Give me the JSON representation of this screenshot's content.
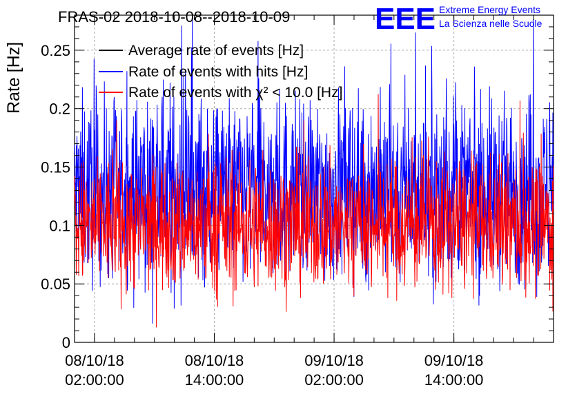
{
  "chart_data": {
    "type": "line",
    "title": "FRAS-02 2018-10-08--2018-10-09",
    "ylabel": "Rate [Hz]",
    "xlabel": "",
    "ylim": [
      0,
      0.28
    ],
    "xlim": [
      "2018-10-08 00:00:00",
      "2018-10-09 23:59:00"
    ],
    "y_ticks": [
      "0",
      "0.05",
      "0.1",
      "0.15",
      "0.2",
      "0.25"
    ],
    "x_ticks": [
      {
        "date": "08/10/18",
        "time": "02:00:00"
      },
      {
        "date": "08/10/18",
        "time": "14:00:00"
      },
      {
        "date": "09/10/18",
        "time": "02:00:00"
      },
      {
        "date": "09/10/18",
        "time": "14:00:00"
      }
    ],
    "grid": true,
    "legend_position": "top-left",
    "series": [
      {
        "name": "Average rate of events [Hz]",
        "color": "#000000",
        "mean": 0.12,
        "spread": 0.0
      },
      {
        "name": "Rate of events with hits [Hz]",
        "color": "#0000ff",
        "mean": 0.13,
        "spread": 0.07
      },
      {
        "name": "Rate of events with χ² < 10.0 [Hz]",
        "color": "#ff0000",
        "mean": 0.1,
        "spread": 0.05
      }
    ]
  },
  "logo": {
    "letters": "EEE",
    "line1": "Extreme Energy Events",
    "line2": "La Scienza nelle Scuole",
    "color": "#0000ff"
  }
}
